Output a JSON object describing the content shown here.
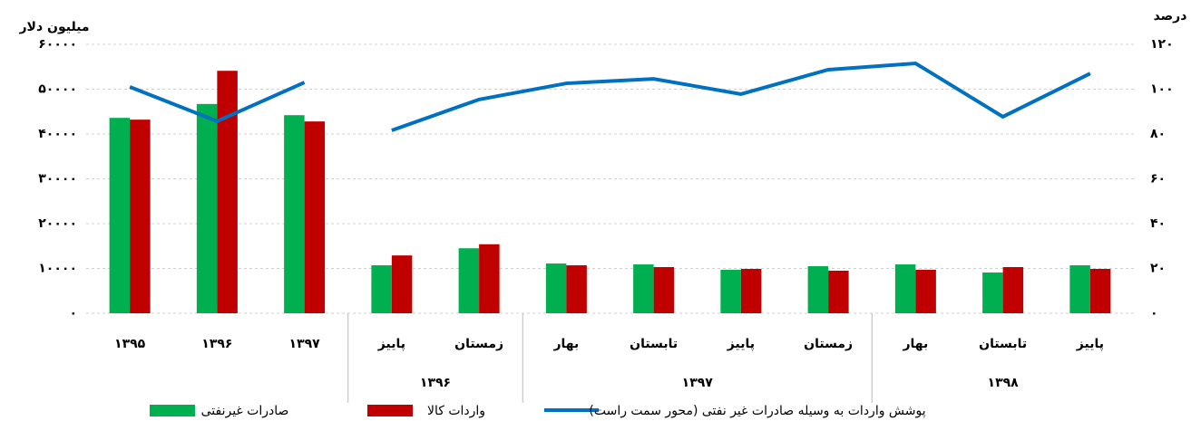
{
  "chart_data": {
    "type": "bar_line",
    "y_axis_label": "میلیون دلار",
    "y2_axis_label": "درصد",
    "categories": [
      "۱۳۹۵",
      "۱۳۹۶",
      "۱۳۹۷",
      "پاییز",
      "زمستان",
      "بهار",
      "تابستان",
      "پاییز",
      "زمستان",
      "بهار",
      "تابستان",
      "پاییز"
    ],
    "groups": [
      {
        "label": "۱۳۹۶",
        "span": 2
      },
      {
        "label": "۱۳۹۷",
        "span": 4
      },
      {
        "label": "۱۳۹۸",
        "span": 3
      }
    ],
    "series": [
      {
        "name": "صادرات غیرنفتی",
        "type": "bar",
        "color": "#00b050",
        "values": [
          43600,
          46700,
          44200,
          10700,
          14500,
          11100,
          10900,
          9700,
          10500,
          10900,
          9100,
          10700
        ]
      },
      {
        "name": "واردات کالا",
        "type": "bar",
        "color": "#c00000",
        "values": [
          43200,
          54100,
          42800,
          12900,
          15400,
          10700,
          10300,
          9900,
          9500,
          9700,
          10300,
          9900
        ]
      },
      {
        "name": "پوشش واردات به وسیله صادرات غیر نفتی (محور سمت راست)",
        "type": "line",
        "axis": "y2",
        "color": "#0070c0",
        "values": [
          101,
          85.7,
          103,
          81.6,
          95.4,
          102.6,
          104.6,
          97.8,
          108.7,
          111.5,
          87.7,
          107
        ]
      }
    ],
    "ylim": [
      0,
      60000
    ],
    "yticks": [
      {
        "value": 0,
        "label": "۰"
      },
      {
        "value": 10000,
        "label": "۱۰۰۰۰"
      },
      {
        "value": 20000,
        "label": "۲۰۰۰۰"
      },
      {
        "value": 30000,
        "label": "۳۰۰۰۰"
      },
      {
        "value": 40000,
        "label": "۴۰۰۰۰"
      },
      {
        "value": 50000,
        "label": "۵۰۰۰۰"
      },
      {
        "value": 60000,
        "label": "۶۰۰۰۰"
      }
    ],
    "y2lim": [
      0,
      120
    ],
    "y2ticks": [
      {
        "value": 0,
        "label": "۰"
      },
      {
        "value": 20,
        "label": "۲۰"
      },
      {
        "value": 40,
        "label": "۴۰"
      },
      {
        "value": 60,
        "label": "۶۰"
      },
      {
        "value": 80,
        "label": "۸۰"
      },
      {
        "value": 100,
        "label": "۱۰۰"
      },
      {
        "value": 120,
        "label": "۱۲۰"
      }
    ],
    "grid": true
  }
}
